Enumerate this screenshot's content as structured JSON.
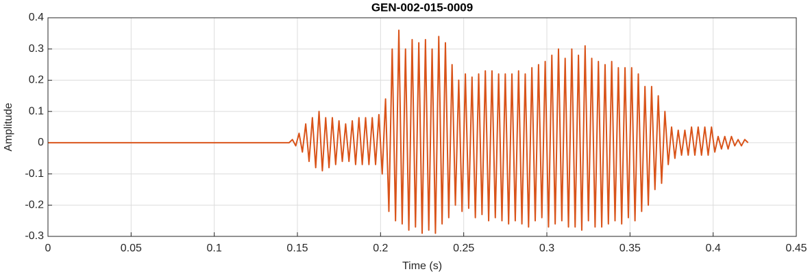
{
  "chart_data": {
    "type": "line",
    "title": "GEN-002-015-0009",
    "x_label": "Time (s)",
    "y_label": "Amplitude",
    "x": [
      0,
      0.01,
      0.05,
      0.1,
      0.14,
      0.145,
      0.147,
      0.149,
      0.151,
      0.153,
      0.155,
      0.157,
      0.159,
      0.161,
      0.163,
      0.165,
      0.167,
      0.169,
      0.171,
      0.173,
      0.175,
      0.177,
      0.179,
      0.181,
      0.183,
      0.185,
      0.187,
      0.189,
      0.191,
      0.193,
      0.195,
      0.197,
      0.199,
      0.201,
      0.203,
      0.205,
      0.207,
      0.209,
      0.211,
      0.213,
      0.215,
      0.217,
      0.219,
      0.221,
      0.223,
      0.225,
      0.227,
      0.229,
      0.231,
      0.233,
      0.235,
      0.237,
      0.239,
      0.241,
      0.243,
      0.245,
      0.247,
      0.249,
      0.251,
      0.253,
      0.255,
      0.257,
      0.259,
      0.261,
      0.263,
      0.265,
      0.267,
      0.269,
      0.271,
      0.273,
      0.275,
      0.277,
      0.279,
      0.281,
      0.283,
      0.285,
      0.287,
      0.289,
      0.291,
      0.293,
      0.295,
      0.297,
      0.299,
      0.301,
      0.303,
      0.305,
      0.307,
      0.309,
      0.311,
      0.313,
      0.315,
      0.317,
      0.319,
      0.321,
      0.323,
      0.325,
      0.327,
      0.329,
      0.331,
      0.333,
      0.335,
      0.337,
      0.339,
      0.341,
      0.343,
      0.345,
      0.347,
      0.349,
      0.351,
      0.353,
      0.355,
      0.357,
      0.359,
      0.361,
      0.363,
      0.365,
      0.367,
      0.369,
      0.371,
      0.373,
      0.375,
      0.377,
      0.379,
      0.381,
      0.383,
      0.385,
      0.387,
      0.389,
      0.391,
      0.393,
      0.395,
      0.397,
      0.399,
      0.401,
      0.403,
      0.405,
      0.407,
      0.409,
      0.411,
      0.413,
      0.415,
      0.417,
      0.419,
      0.421
    ],
    "series": [
      {
        "name": "Amplitude",
        "color": "#d95319",
        "values": [
          0,
          0,
          0,
          0,
          0,
          0,
          0.01,
          -0.01,
          0.03,
          -0.03,
          0.06,
          -0.06,
          0.08,
          -0.08,
          0.1,
          -0.09,
          0.08,
          -0.08,
          0.08,
          -0.07,
          0.07,
          -0.06,
          0.06,
          -0.06,
          0.07,
          -0.07,
          0.08,
          -0.07,
          0.08,
          -0.07,
          0.08,
          -0.07,
          0.09,
          -0.1,
          0.14,
          -0.22,
          0.3,
          -0.25,
          0.36,
          -0.26,
          0.3,
          -0.28,
          0.33,
          -0.27,
          0.32,
          -0.29,
          0.33,
          -0.28,
          0.3,
          -0.29,
          0.34,
          -0.26,
          0.32,
          -0.24,
          0.25,
          -0.2,
          0.2,
          -0.22,
          0.22,
          -0.21,
          0.21,
          -0.24,
          0.22,
          -0.23,
          0.23,
          -0.25,
          0.23,
          -0.24,
          0.22,
          -0.25,
          0.22,
          -0.26,
          0.22,
          -0.25,
          0.23,
          -0.26,
          0.22,
          -0.27,
          0.24,
          -0.25,
          0.25,
          -0.24,
          0.26,
          -0.27,
          0.28,
          -0.26,
          0.3,
          -0.25,
          0.27,
          -0.27,
          0.3,
          -0.27,
          0.28,
          -0.28,
          0.31,
          -0.25,
          0.27,
          -0.27,
          0.26,
          -0.27,
          0.25,
          -0.26,
          0.26,
          -0.25,
          0.24,
          -0.26,
          0.24,
          -0.24,
          0.24,
          -0.25,
          0.22,
          -0.22,
          0.18,
          -0.2,
          0.18,
          -0.15,
          0.15,
          -0.13,
          0.1,
          -0.07,
          0.05,
          -0.05,
          0.04,
          -0.04,
          0.04,
          -0.04,
          0.05,
          -0.04,
          0.05,
          -0.04,
          0.05,
          -0.04,
          0.05,
          -0.03,
          0.02,
          -0.02,
          0.02,
          -0.02,
          0.02,
          -0.01,
          0.01,
          -0.01,
          0.01,
          0
        ]
      }
    ],
    "xlim": [
      0,
      0.45
    ],
    "xticks": [
      0,
      0.05,
      0.1,
      0.15,
      0.2,
      0.25,
      0.3,
      0.35,
      0.4,
      0.45
    ],
    "ylim": [
      -0.3,
      0.4
    ],
    "yticks": [
      -0.3,
      -0.2,
      -0.1,
      0,
      0.1,
      0.2,
      0.3,
      0.4
    ],
    "grid": true
  }
}
